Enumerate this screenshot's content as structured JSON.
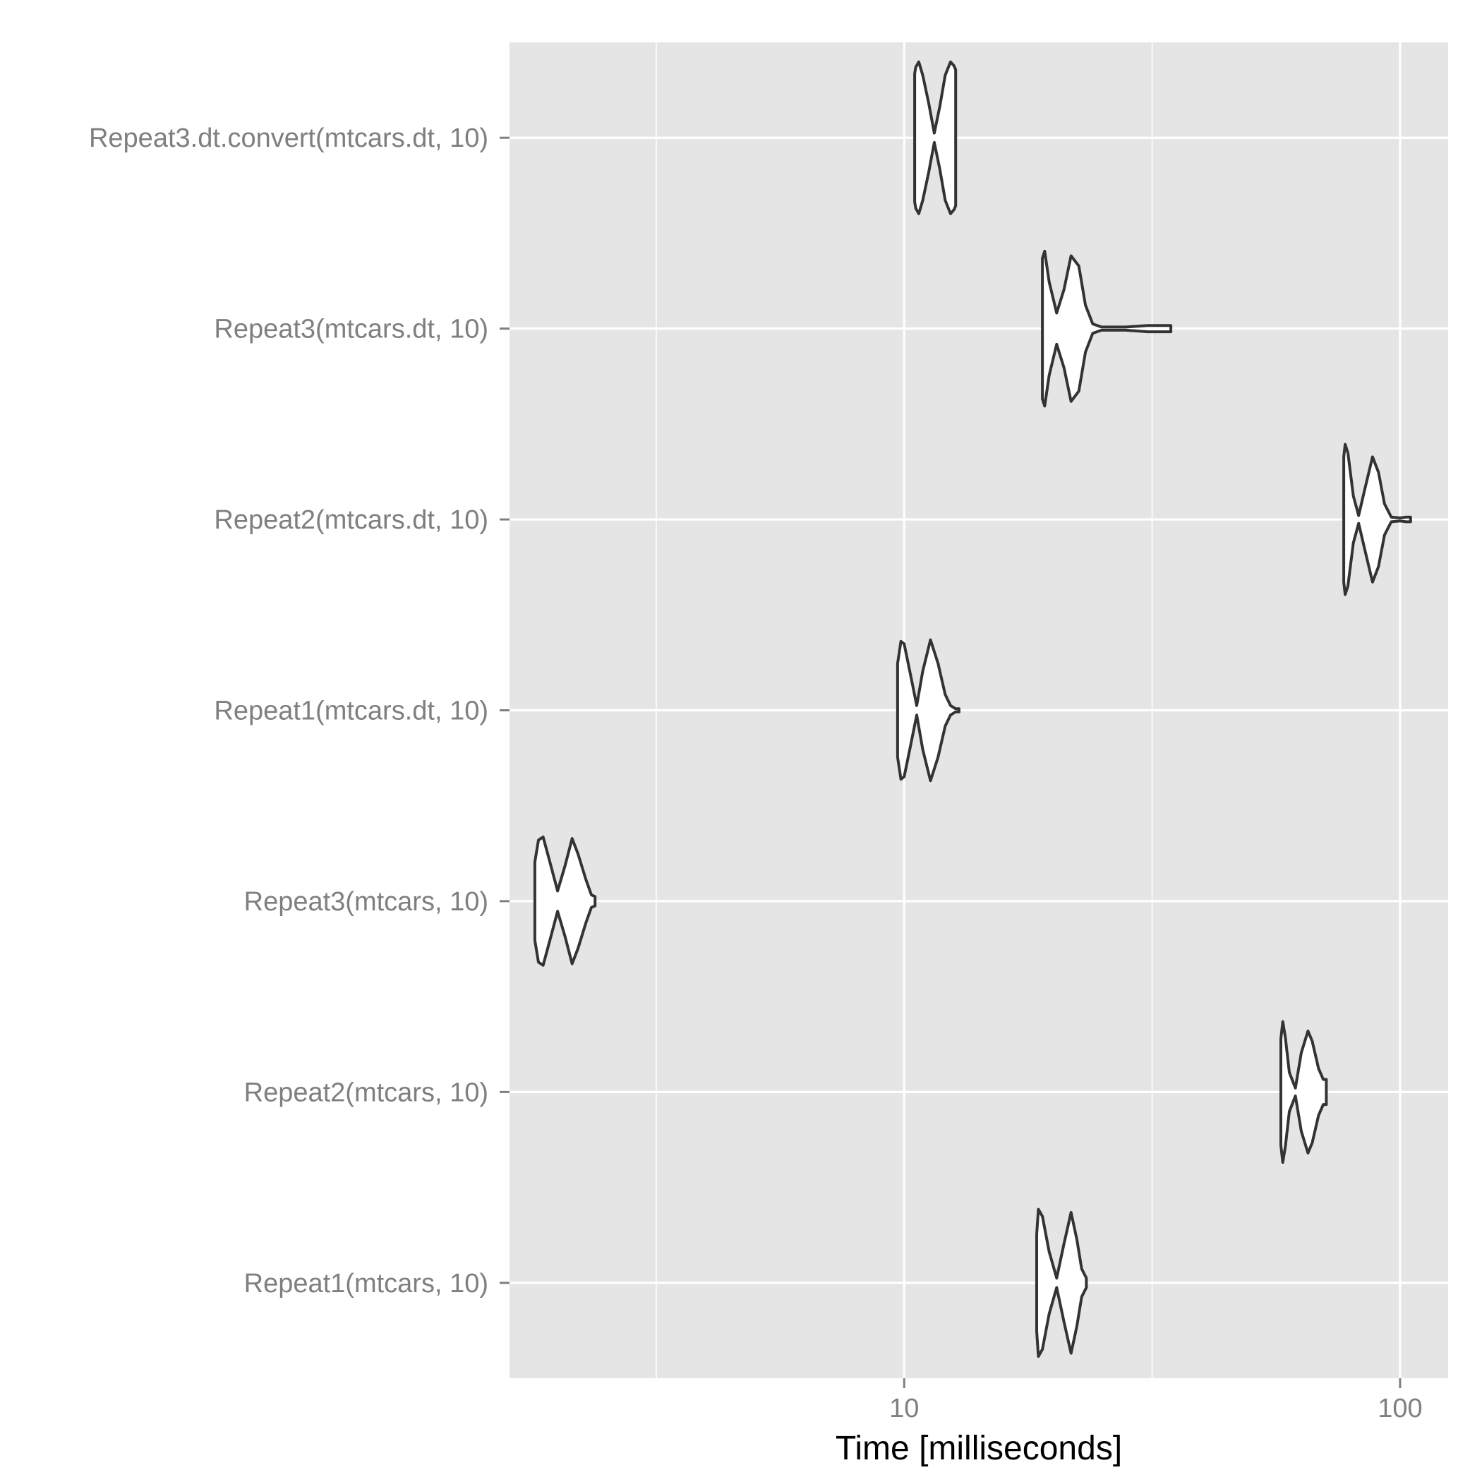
{
  "chart_data": {
    "type": "violin",
    "orientation": "horizontal",
    "title": "",
    "xlabel": "Time [milliseconds]",
    "ylabel": "",
    "x_scale": "log10",
    "xlim": [
      1.6,
      125
    ],
    "x_ticks": [
      10,
      100
    ],
    "x_tick_labels": [
      "10",
      "100"
    ],
    "grid": true,
    "background": "#e5e5e5",
    "grid_color": "#ffffff",
    "violin_fill": "#ffffff",
    "violin_stroke": "#333333",
    "categories": [
      "Repeat3.dt.convert(mtcars.dt, 10)",
      "Repeat3(mtcars.dt, 10)",
      "Repeat2(mtcars.dt, 10)",
      "Repeat1(mtcars.dt, 10)",
      "Repeat3(mtcars, 10)",
      "Repeat2(mtcars, 10)",
      "Repeat1(mtcars, 10)"
    ],
    "series": [
      {
        "category": "Repeat3.dt.convert(mtcars.dt, 10)",
        "min": 10.5,
        "max": 12.7,
        "density_time": [
          10.5,
          10.55,
          10.7,
          10.9,
          11.2,
          11.5,
          11.8,
          12.1,
          12.4,
          12.6,
          12.7
        ],
        "density_width": [
          0.82,
          0.9,
          0.97,
          0.8,
          0.45,
          0.06,
          0.4,
          0.8,
          0.97,
          0.92,
          0.87
        ]
      },
      {
        "category": "Repeat3(mtcars.dt, 10)",
        "min": 19.0,
        "max": 34.5,
        "density_time": [
          19.0,
          19.2,
          19.6,
          20.3,
          21.0,
          21.7,
          22.5,
          23.2,
          24.0,
          25.0,
          26.0,
          28.0,
          31.0,
          34.5
        ],
        "density_width": [
          0.9,
          0.99,
          0.6,
          0.2,
          0.5,
          0.93,
          0.8,
          0.3,
          0.06,
          0.02,
          0.02,
          0.02,
          0.04,
          0.04
        ]
      },
      {
        "category": "Repeat2(mtcars.dt, 10)",
        "min": 77.0,
        "max": 105.0,
        "density_time": [
          77.0,
          77.5,
          78.5,
          80.5,
          82.5,
          85.0,
          88.0,
          90.5,
          93.0,
          96.0,
          100.0,
          103.0,
          105.0
        ],
        "density_width": [
          0.8,
          0.96,
          0.85,
          0.3,
          0.05,
          0.4,
          0.8,
          0.6,
          0.2,
          0.03,
          0.02,
          0.03,
          0.03
        ]
      },
      {
        "category": "Repeat1(mtcars.dt, 10)",
        "min": 9.7,
        "max": 12.9,
        "density_time": [
          9.7,
          9.85,
          10.0,
          10.3,
          10.6,
          10.9,
          11.3,
          11.7,
          12.1,
          12.4,
          12.7,
          12.9
        ],
        "density_width": [
          0.6,
          0.88,
          0.85,
          0.45,
          0.06,
          0.5,
          0.9,
          0.6,
          0.2,
          0.06,
          0.02,
          0.02
        ]
      },
      {
        "category": "Repeat3(mtcars, 10)",
        "min": 1.8,
        "max": 2.38,
        "density_time": [
          1.8,
          1.83,
          1.87,
          1.93,
          2.0,
          2.07,
          2.14,
          2.2,
          2.28,
          2.34,
          2.38
        ],
        "density_width": [
          0.5,
          0.78,
          0.82,
          0.5,
          0.13,
          0.45,
          0.8,
          0.6,
          0.28,
          0.08,
          0.06
        ]
      },
      {
        "category": "Repeat2(mtcars, 10)",
        "min": 57.5,
        "max": 71.0,
        "density_time": [
          57.5,
          58.0,
          58.7,
          59.8,
          61.5,
          63.2,
          65.2,
          66.5,
          68.5,
          70.0,
          71.0
        ],
        "density_width": [
          0.68,
          0.9,
          0.7,
          0.25,
          0.05,
          0.5,
          0.78,
          0.65,
          0.3,
          0.16,
          0.16
        ]
      },
      {
        "category": "Repeat1(mtcars, 10)",
        "min": 18.5,
        "max": 23.3,
        "density_time": [
          18.5,
          18.65,
          19.0,
          19.6,
          20.3,
          21.0,
          21.7,
          22.3,
          22.8,
          23.3
        ],
        "density_width": [
          0.62,
          0.94,
          0.85,
          0.4,
          0.06,
          0.5,
          0.9,
          0.55,
          0.18,
          0.06
        ]
      }
    ]
  }
}
